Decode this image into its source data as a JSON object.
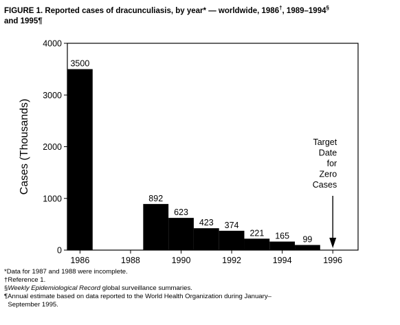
{
  "figure": {
    "title_main": "FIGURE 1. Reported cases of dracunculiasis, by year* — worldwide, 1986",
    "title_mark1": "†",
    "title_mid": ", 1989–1994",
    "title_mark2": "§",
    "title_line2": "and 1995¶"
  },
  "chart_data": {
    "type": "bar",
    "ylabel": "Cases (Thousands)",
    "xlabel": "",
    "ylim": [
      0,
      4000
    ],
    "yticks": [
      0,
      1000,
      2000,
      3000,
      4000
    ],
    "xlim": [
      1985.5,
      1997
    ],
    "xticks": [
      1986,
      1988,
      1990,
      1992,
      1994,
      1996
    ],
    "bars": [
      {
        "year": 1986,
        "value": 3500,
        "label": "3500"
      },
      {
        "year": 1989,
        "value": 892,
        "label": "892"
      },
      {
        "year": 1990,
        "value": 623,
        "label": "623"
      },
      {
        "year": 1991,
        "value": 423,
        "label": "423"
      },
      {
        "year": 1992,
        "value": 374,
        "label": "374"
      },
      {
        "year": 1993,
        "value": 221,
        "label": "221"
      },
      {
        "year": 1994,
        "value": 165,
        "label": "165"
      },
      {
        "year": 1995,
        "value": 99,
        "label": "99"
      }
    ],
    "annotation": {
      "lines": [
        "Target",
        "Date",
        "for",
        "Zero",
        "Cases"
      ],
      "year": 1996
    },
    "colors": {
      "bar": "#000000",
      "axis": "#000000",
      "background": "#ffffff"
    }
  },
  "footnotes": {
    "n1": "*Data for 1987 and 1988 were incomplete.",
    "n2": "†Reference 1.",
    "n3_mark": "§",
    "n3_italic": "Weekly Epidemiological Record",
    "n3_rest": " global surveillance summaries.",
    "n4_line1": "¶Annual estimate based on data reported to the World Health Organization during January–",
    "n4_line2": "  September 1995."
  }
}
